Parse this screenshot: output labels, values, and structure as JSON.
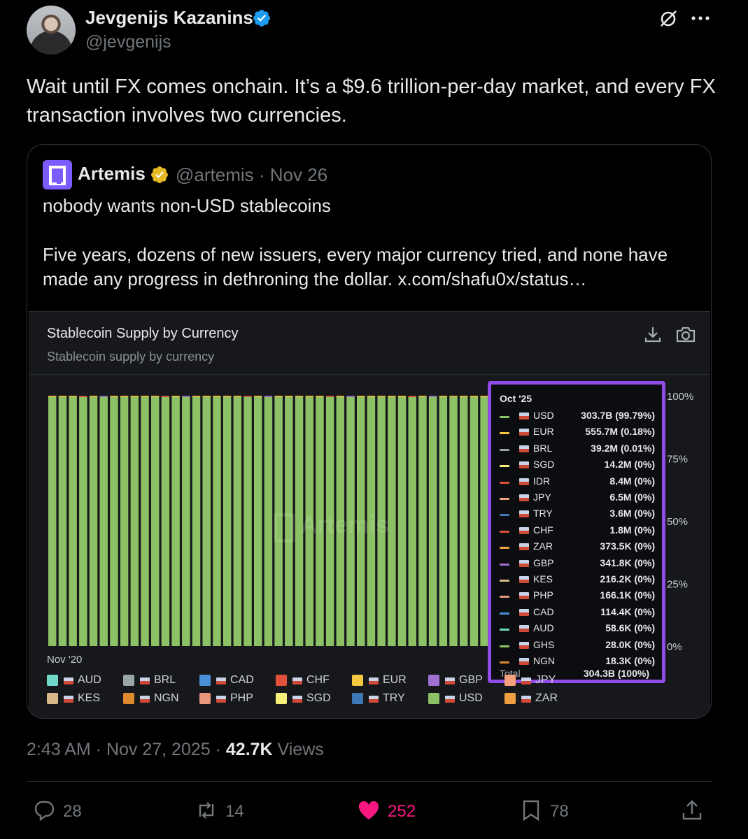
{
  "author": {
    "name": "Jevgenijs Kazanins",
    "handle": "@jevgenijs"
  },
  "tweet": {
    "text": "Wait until FX comes onchain. It’s a $9.6 trillion-per-day market, and every FX transaction involves two currencies."
  },
  "quote": {
    "name": "Artemis",
    "meta": "@artemis · Nov 26",
    "line1": "nobody wants non-USD stablecoins",
    "line2": "Five years, dozens of new issuers, every major currency tried, and none have made any progress in dethroning the dollar.  x.com/shafu0x/status…"
  },
  "chart_data": {
    "type": "bar",
    "stacked": true,
    "percent": true,
    "title": "Stablecoin Supply by Currency",
    "subtitle": "Stablecoin supply by currency",
    "x_start_label": "Nov '20",
    "y_ticks": [
      "100%",
      "75%",
      "50%",
      "25%",
      "0%"
    ],
    "bar_count": 60,
    "usd_share_approx": 0.995,
    "watermark": "Artemis",
    "tooltip": {
      "period": "Oct '25",
      "rows": [
        {
          "code": "USD",
          "value": "303.7B (99.79%)",
          "color": "#8cc265"
        },
        {
          "code": "EUR",
          "value": "555.7M (0.18%)",
          "color": "#f5c842"
        },
        {
          "code": "BRL",
          "value": "39.2M (0.01%)",
          "color": "#9aa5a8"
        },
        {
          "code": "SGD",
          "value": "14.2M (0%)",
          "color": "#f8ee7a"
        },
        {
          "code": "IDR",
          "value": "8.4M (0%)",
          "color": "#e0503a"
        },
        {
          "code": "JPY",
          "value": "6.5M (0%)",
          "color": "#f4a07c"
        },
        {
          "code": "TRY",
          "value": "3.6M (0%)",
          "color": "#3f78b5"
        },
        {
          "code": "CHF",
          "value": "1.8M (0%)",
          "color": "#e0503a"
        },
        {
          "code": "ZAR",
          "value": "373.5K (0%)",
          "color": "#f0a040"
        },
        {
          "code": "GBP",
          "value": "341.8K (0%)",
          "color": "#a070d0"
        },
        {
          "code": "KES",
          "value": "216.2K (0%)",
          "color": "#d8b888"
        },
        {
          "code": "PHP",
          "value": "166.1K (0%)",
          "color": "#e8967c"
        },
        {
          "code": "CAD",
          "value": "114.4K (0%)",
          "color": "#4a90d8"
        },
        {
          "code": "AUD",
          "value": "58.6K (0%)",
          "color": "#6fd8c8"
        },
        {
          "code": "GHS",
          "value": "28.0K (0%)",
          "color": "#8cc265"
        },
        {
          "code": "NGN",
          "value": "18.3K (0%)",
          "color": "#e08a30"
        }
      ],
      "total_label": "Total",
      "total_value": "304.3B (100%)"
    },
    "legend": [
      {
        "label": "AUD",
        "color": "#6fd8c8"
      },
      {
        "label": "BRL",
        "color": "#9aa5a8"
      },
      {
        "label": "CAD",
        "color": "#4a90d8"
      },
      {
        "label": "CHF",
        "color": "#e0503a"
      },
      {
        "label": "EUR",
        "color": "#f5c842"
      },
      {
        "label": "GBP",
        "color": "#a070d0"
      },
      {
        "label": "JPY",
        "color": "#f4a07c"
      },
      {
        "label": "KES",
        "color": "#d8b888"
      },
      {
        "label": "NGN",
        "color": "#e08a30"
      },
      {
        "label": "PHP",
        "color": "#e8967c"
      },
      {
        "label": "SGD",
        "color": "#f8ee7a"
      },
      {
        "label": "TRY",
        "color": "#3f78b5"
      },
      {
        "label": "USD",
        "color": "#8cc265"
      },
      {
        "label": "ZAR",
        "color": "#f0a040"
      }
    ]
  },
  "footer": {
    "time": "2:43 AM · Nov 27, 2025 · ",
    "views_count": "42.7K",
    "views_label": " Views"
  },
  "actions": {
    "replies": "28",
    "reposts": "14",
    "likes": "252",
    "bookmarks": "78"
  },
  "colors": {
    "like": "#f91880",
    "verified": "#1d9bf0",
    "gold_badge": "#e8b923",
    "tooltip_border": "#8f4ce6"
  }
}
